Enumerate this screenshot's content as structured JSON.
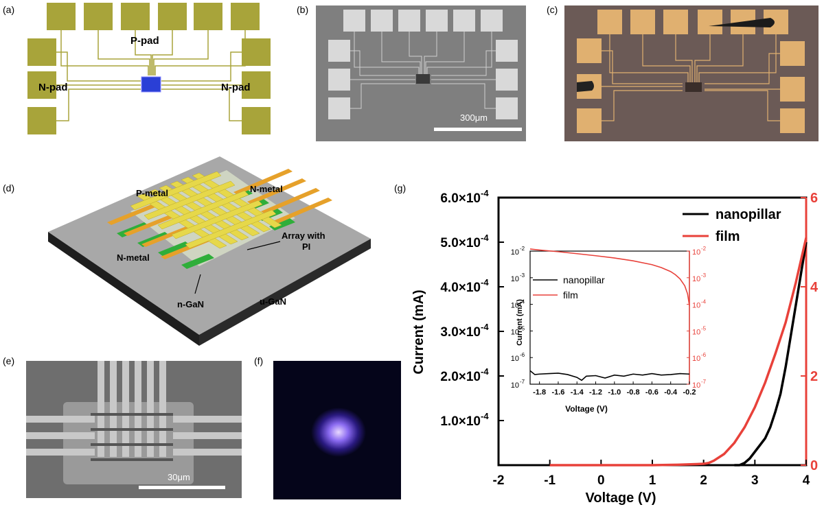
{
  "panel_labels": {
    "a": "(a)",
    "b": "(b)",
    "c": "(c)",
    "d": "(d)",
    "e": "(e)",
    "f": "(f)",
    "g": "(g)"
  },
  "panel_a": {
    "p_pad": "P-pad",
    "n_pad_left": "N-pad",
    "n_pad_right": "N-pad",
    "pad_color": "#a8a43a"
  },
  "panel_b": {
    "scale_label": "300μm"
  },
  "panel_d": {
    "p_metal": "P-metal",
    "n_metal_top": "N-metal",
    "n_metal_left": "N-metal",
    "array": "Array with",
    "array2": "PI",
    "n_gan": "n-GaN",
    "u_gan": "u-GaN",
    "metal_color": "#e6d84a",
    "ngan_color": "#2fae3a"
  },
  "panel_e": {
    "scale_label": "30μm"
  },
  "panel_g": {
    "xlabel": "Voltage (V)",
    "ylabel": "Current (mA)",
    "x_ticks": [
      "-2",
      "-1",
      "0",
      "1",
      "2",
      "3",
      "4"
    ],
    "y_left_ticks": [
      "6.0×10",
      "5.0×10",
      "4.0×10",
      "3.0×10",
      "2.0×10",
      "1.0×10"
    ],
    "y_left_exp": "-4",
    "y_right_ticks": [
      "0",
      "2",
      "4",
      "6"
    ],
    "legend": [
      "nanopillar",
      "film"
    ],
    "inset": {
      "xlabel": "Voltage (V)",
      "ylabel": "Current (mA)",
      "x_ticks": [
        "-1.8",
        "-1.6",
        "-1.4",
        "-1.2",
        "-1.0",
        "-0.8",
        "-0.6",
        "-0.4",
        "-0.2"
      ],
      "y_ticks_base": "10",
      "y_ticks_exp": [
        "-2",
        "-3",
        "-4",
        "-5",
        "-6",
        "-7"
      ],
      "legend": [
        "nanopillar",
        "film"
      ]
    }
  },
  "chart_data": {
    "type": "line",
    "xlabel": "Voltage (V)",
    "ylabel": "Current (mA)",
    "xlim": [
      -2,
      4
    ],
    "ylim_left": [
      0,
      0.0006
    ],
    "ylim_right": [
      0,
      6
    ],
    "series": [
      {
        "name": "nanopillar",
        "color": "#000000",
        "axis": "left",
        "x": [
          2.6,
          2.7,
          2.8,
          2.9,
          3.0,
          3.1,
          3.2,
          3.3,
          3.4,
          3.5,
          3.6,
          3.7,
          3.8,
          3.9,
          4.0
        ],
        "y": [
          0,
          0.0,
          5e-06,
          1.5e-05,
          3e-05,
          4.5e-05,
          6e-05,
          8.5e-05,
          0.00012,
          0.00016,
          0.00022,
          0.00029,
          0.00036,
          0.00043,
          0.0005
        ]
      },
      {
        "name": "film",
        "color": "#e8413a",
        "axis": "right",
        "x": [
          -1,
          0,
          1,
          1.5,
          2.0,
          2.1,
          2.2,
          2.4,
          2.6,
          2.8,
          3.0,
          3.2,
          3.4,
          3.6,
          3.8,
          4.0
        ],
        "y": [
          0,
          0,
          0,
          0.01,
          0.03,
          0.05,
          0.1,
          0.25,
          0.5,
          0.85,
          1.3,
          1.85,
          2.5,
          3.2,
          4.1,
          5.1
        ]
      }
    ],
    "inset": {
      "type": "line",
      "xlim": [
        -1.9,
        -0.2
      ],
      "log_y": true,
      "series": [
        {
          "name": "nanopillar",
          "color": "#000000",
          "x": [
            -1.9,
            -1.85,
            -1.8,
            -1.7,
            -1.6,
            -1.5,
            -1.4,
            -1.35,
            -1.3,
            -1.2,
            -1.1,
            -1.0,
            -0.9,
            -0.8,
            -0.7,
            -0.6,
            -0.5,
            -0.4,
            -0.3,
            -0.2
          ],
          "y": [
            3.2e-07,
            2.3e-07,
            2.4e-07,
            2.5e-07,
            2.6e-07,
            2.3e-07,
            1.8e-07,
            1.4e-07,
            2e-07,
            2.1e-07,
            1.7e-07,
            2.2e-07,
            2e-07,
            2.4e-07,
            2.2e-07,
            2.5e-07,
            2.2e-07,
            2.3e-07,
            2.5e-07,
            2.4e-07
          ]
        },
        {
          "name": "film",
          "color": "#e8413a",
          "x": [
            -1.9,
            -1.8,
            -1.6,
            -1.4,
            -1.2,
            -1.0,
            -0.8,
            -0.6,
            -0.5,
            -0.4,
            -0.35,
            -0.3,
            -0.25,
            -0.22,
            -0.2
          ],
          "y": [
            0.012,
            0.011,
            0.0095,
            0.008,
            0.0067,
            0.0055,
            0.0043,
            0.0031,
            0.0024,
            0.0017,
            0.0013,
            0.0009,
            0.0005,
            0.00025,
            9e-05
          ]
        }
      ]
    }
  }
}
